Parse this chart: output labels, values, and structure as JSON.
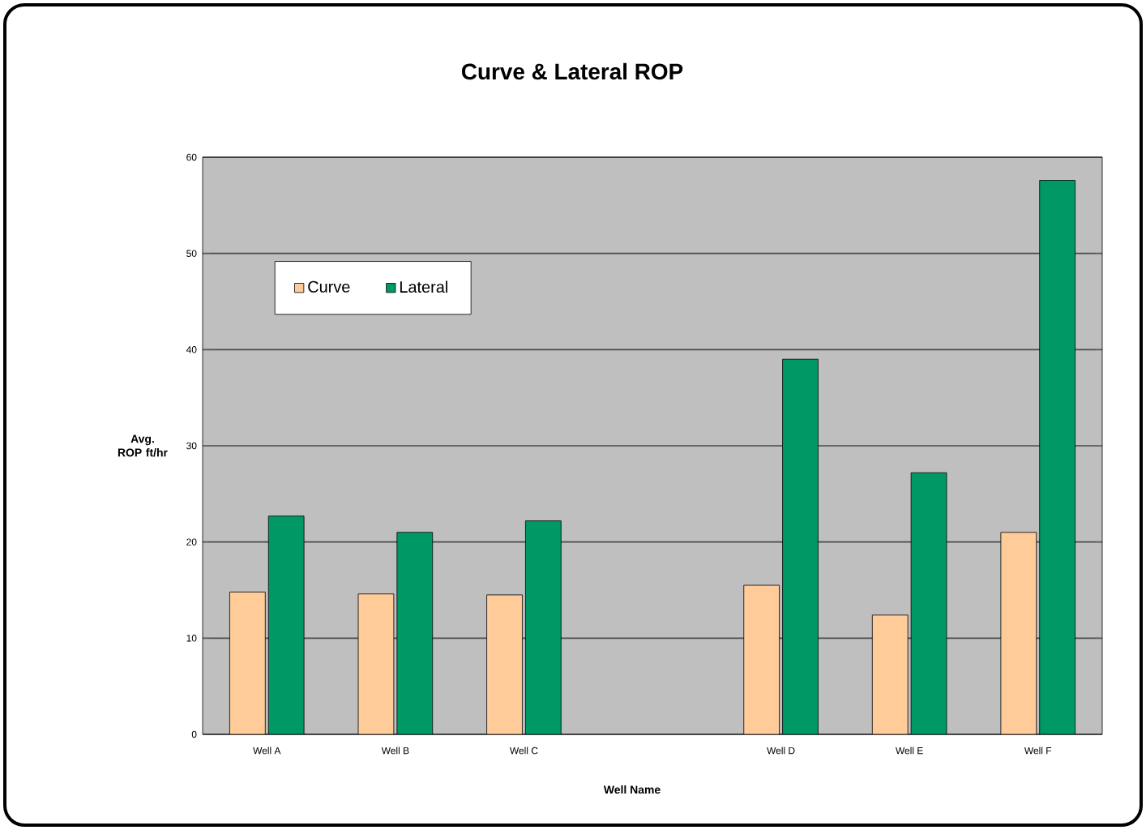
{
  "chart_data": {
    "type": "bar",
    "title": "Curve & Lateral ROP",
    "xlabel": "Well Name",
    "ylabel": "Avg. ROP ft/hr",
    "categories": [
      "Well A",
      "Well B",
      "Well C",
      null,
      "Well D",
      "Well E",
      "Well F"
    ],
    "series": [
      {
        "name": "Curve",
        "color": "#ffcc99",
        "values": [
          14.8,
          14.6,
          14.5,
          null,
          15.5,
          12.4,
          21
        ]
      },
      {
        "name": "Lateral",
        "color": "#009966",
        "values": [
          22.7,
          21,
          22.2,
          null,
          39,
          27.2,
          57.6
        ]
      }
    ],
    "ylim": [
      0,
      60
    ],
    "yticks": [
      0,
      10,
      20,
      30,
      40,
      50,
      60
    ],
    "grid": "y",
    "legend": "top left"
  }
}
